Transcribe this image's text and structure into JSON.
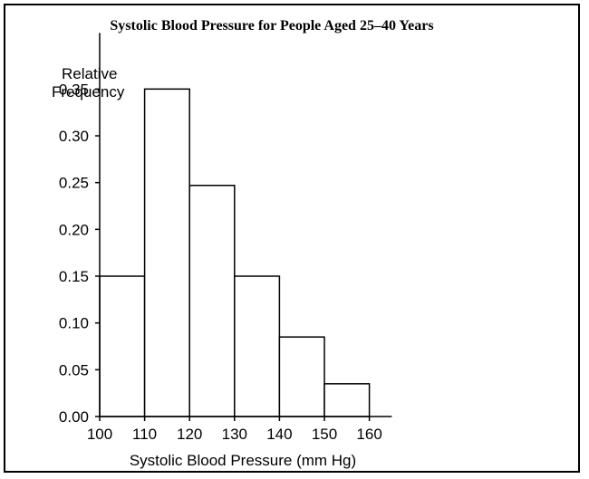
{
  "chart_data": {
    "type": "bar",
    "title": "Systolic Blood Pressure for People Aged 25–40 Years",
    "xlabel": "Systolic Blood Pressure (mm Hg)",
    "ylabel": [
      "Relative",
      "Frequency"
    ],
    "bin_edges": [
      100,
      110,
      120,
      130,
      140,
      150,
      160
    ],
    "values": [
      0.15,
      0.35,
      0.247,
      0.15,
      0.085,
      0.035
    ],
    "x_ticks": [
      "100",
      "110",
      "120",
      "130",
      "140",
      "150",
      "160"
    ],
    "y_ticks": [
      0.35,
      0.3,
      0.25,
      0.2,
      0.15,
      0.1,
      0.05,
      0.0
    ],
    "y_tick_labels": [
      "0.35",
      "0.30",
      "0.25",
      "0.20",
      "0.15",
      "0.10",
      "0.05",
      "0.00"
    ],
    "xlim": [
      100,
      165
    ],
    "ylim": [
      0,
      0.41
    ],
    "grid": false,
    "colors": {
      "bar_fill": "#ffffff",
      "bar_stroke": "#000000"
    }
  }
}
